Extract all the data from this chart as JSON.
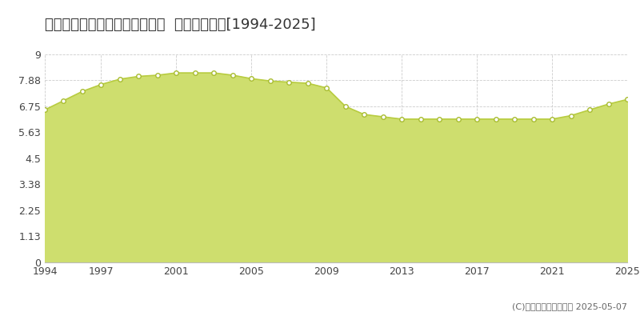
{
  "title": "上川郡東神楽町ひじり野北一条  公示地価推移[1994-2025]",
  "years": [
    1994,
    1995,
    1996,
    1997,
    1998,
    1999,
    2000,
    2001,
    2002,
    2003,
    2004,
    2005,
    2006,
    2007,
    2008,
    2009,
    2010,
    2011,
    2012,
    2013,
    2014,
    2015,
    2016,
    2017,
    2018,
    2019,
    2020,
    2021,
    2022,
    2023,
    2024,
    2025
  ],
  "values": [
    6.6,
    7.0,
    7.4,
    7.7,
    7.93,
    8.05,
    8.1,
    8.2,
    8.2,
    8.2,
    8.1,
    7.95,
    7.85,
    7.8,
    7.75,
    7.55,
    6.75,
    6.4,
    6.3,
    6.2,
    6.2,
    6.2,
    6.2,
    6.2,
    6.2,
    6.2,
    6.2,
    6.2,
    6.35,
    6.6,
    6.85,
    7.05
  ],
  "ylim": [
    0,
    9
  ],
  "yticks": [
    0,
    1.13,
    2.25,
    3.38,
    4.5,
    5.63,
    6.75,
    7.88,
    9
  ],
  "ytick_labels": [
    "0",
    "1.13",
    "2.25",
    "3.38",
    "4.5",
    "5.63",
    "6.75",
    "7.88",
    "9"
  ],
  "xticks": [
    1994,
    1997,
    2001,
    2005,
    2009,
    2013,
    2017,
    2021,
    2025
  ],
  "fill_color": "#cede6e",
  "line_color": "#b8cc40",
  "marker_facecolor": "#ffffff",
  "marker_edgecolor": "#a8bc30",
  "bg_color": "#ffffff",
  "plot_bg_color": "#ffffff",
  "grid_color": "#cccccc",
  "legend_color": "#c0d040",
  "copyright": "(C)土地価格ドットコム 2025-05-07",
  "title_fontsize": 13,
  "tick_fontsize": 9,
  "legend_fontsize": 10
}
